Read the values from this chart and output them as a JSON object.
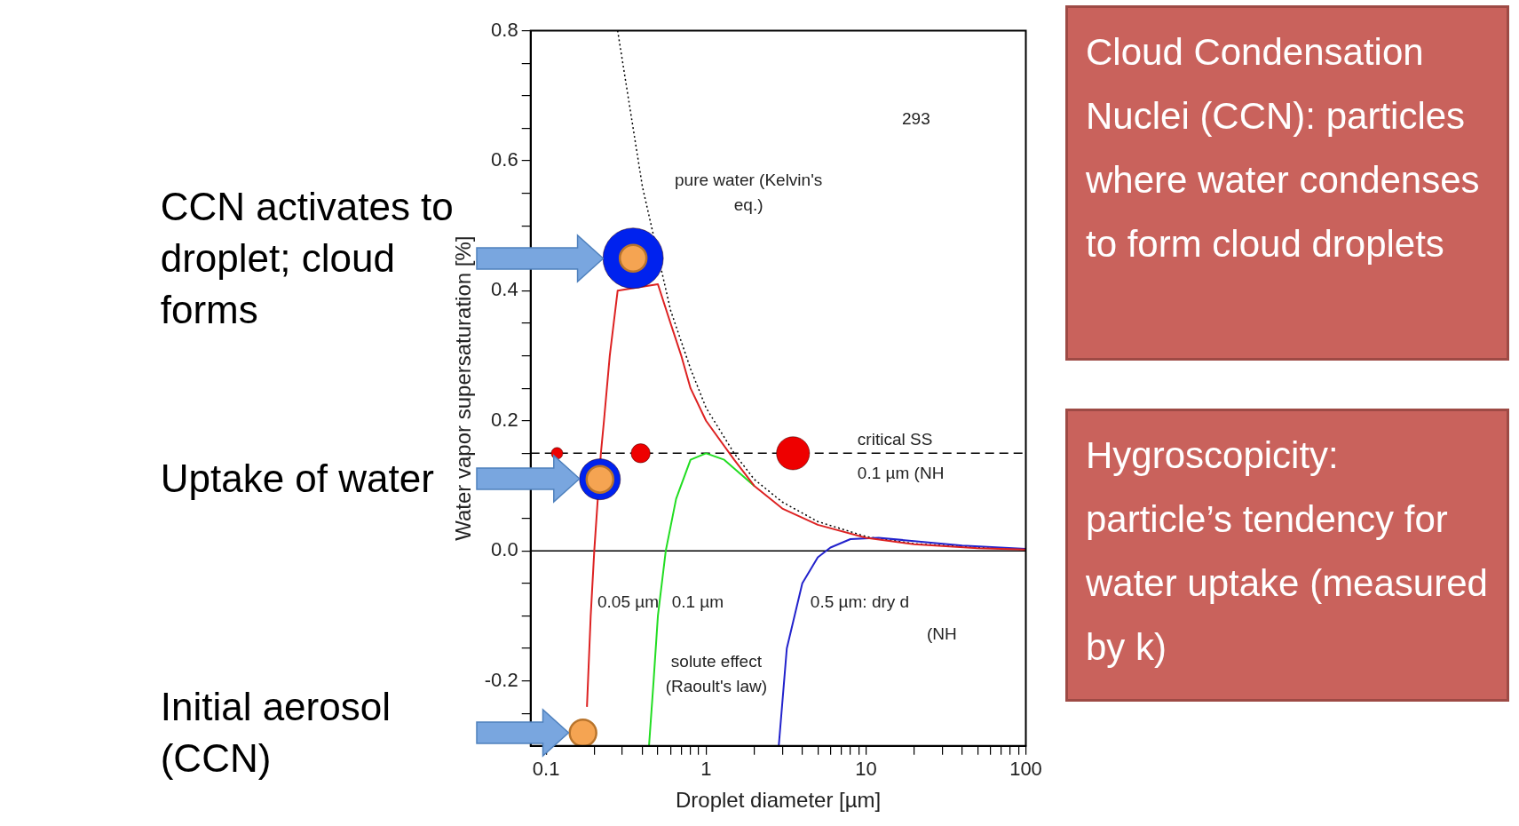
{
  "chart_data": {
    "type": "line",
    "xlabel": "Droplet diameter [µm]",
    "ylabel": "Water vapor supersaturation [%]",
    "log": "x",
    "xlim": [
      0.08,
      100
    ],
    "ylim": [
      -0.3,
      0.8
    ],
    "xticks": [
      0.1,
      {
        "value": 0.2,
        "label": null
      },
      {
        "value": 0.3,
        "label": null
      },
      {
        "value": 0.4,
        "label": null
      },
      {
        "value": 0.5,
        "label": null
      },
      {
        "value": 0.6,
        "label": null
      },
      {
        "value": 0.7,
        "label": null
      },
      {
        "value": 0.8,
        "label": null
      },
      {
        "value": 0.9,
        "label": null
      },
      1,
      {
        "value": 2,
        "label": null
      },
      {
        "value": 3,
        "label": null
      },
      {
        "value": 4,
        "label": null
      },
      {
        "value": 5,
        "label": null
      },
      {
        "value": 6,
        "label": null
      },
      {
        "value": 7,
        "label": null
      },
      {
        "value": 8,
        "label": null
      },
      {
        "value": 9,
        "label": null
      },
      10,
      {
        "value": 20,
        "label": null
      },
      {
        "value": 30,
        "label": null
      },
      {
        "value": 40,
        "label": null
      },
      {
        "value": 50,
        "label": null
      },
      {
        "value": 60,
        "label": null
      },
      {
        "value": 70,
        "label": null
      },
      {
        "value": 80,
        "label": null
      },
      {
        "value": 90,
        "label": null
      },
      100
    ],
    "yticks": [
      {
        "value": -0.25,
        "label": null
      },
      -0.2,
      {
        "value": -0.15,
        "label": null
      },
      {
        "value": -0.1,
        "label": null
      },
      {
        "value": -0.05,
        "label": null
      },
      {
        "value": 0,
        "label": "0.0"
      },
      {
        "value": 0.05,
        "label": null
      },
      {
        "value": 0.1,
        "label": null
      },
      {
        "value": 0.15,
        "label": null
      },
      0.2,
      {
        "value": 0.25,
        "label": null
      },
      {
        "value": 0.3,
        "label": null
      },
      {
        "value": 0.35,
        "label": null
      },
      0.4,
      {
        "value": 0.45,
        "label": null
      },
      {
        "value": 0.5,
        "label": null
      },
      {
        "value": 0.55,
        "label": null
      },
      0.6,
      {
        "value": 0.65,
        "label": null
      },
      {
        "value": 0.7,
        "label": null
      },
      {
        "value": 0.75,
        "label": null
      },
      0.8
    ],
    "grid": false,
    "legend": false,
    "series": [
      {
        "color": "#000000",
        "line_style": "dotted",
        "marker": "none",
        "x": [
          0.28,
          0.35,
          0.4,
          0.6,
          0.8,
          1,
          1.5,
          2,
          3,
          5,
          10,
          20,
          50,
          100
        ],
        "values": [
          0.8,
          0.65,
          0.56,
          0.37,
          0.28,
          0.22,
          0.15,
          0.11,
          0.075,
          0.045,
          0.022,
          0.011,
          0.005,
          0.002
        ]
      },
      {
        "color": "#22dd22",
        "line_style": "solid",
        "marker": "none",
        "x": [
          0.44,
          0.47,
          0.5,
          0.56,
          0.65,
          0.8,
          1,
          1.3,
          2
        ],
        "values": [
          -0.3,
          -0.2,
          -0.1,
          0,
          0.08,
          0.14,
          0.15,
          0.14,
          0.1
        ]
      },
      {
        "color": "#2222cc",
        "line_style": "solid",
        "marker": "none",
        "x": [
          2.85,
          3.2,
          4,
          5,
          6,
          8,
          12,
          20,
          40,
          100
        ],
        "values": [
          -0.3,
          -0.15,
          -0.05,
          -0.01,
          0.005,
          0.018,
          0.02,
          0.015,
          0.008,
          0.003
        ]
      },
      {
        "color": "#dd2222",
        "line_style": "solid",
        "marker": "none",
        "x": [
          0.18,
          0.19,
          0.2,
          0.22,
          0.23,
          0.25,
          0.28,
          0.5,
          0.6,
          0.7,
          0.8,
          1,
          1.5,
          2,
          3,
          5,
          10,
          20,
          50,
          100
        ],
        "values": [
          -0.24,
          -0.1,
          0,
          0.15,
          0.2,
          0.3,
          0.4,
          0.41,
          0.35,
          0.3,
          0.25,
          0.2,
          0.14,
          0.1,
          0.065,
          0.04,
          0.02,
          0.01,
          0.004,
          0.002
        ]
      },
      {
        "type": "bubble",
        "color": "#ee0000",
        "x": [
          0.117,
          0.39,
          3.5
        ],
        "values": [
          0.15,
          0.15,
          0.15
        ],
        "sizes": [
          0.037,
          0.1,
          0.3
        ]
      },
      {
        "type": "bubble",
        "color": "#0022ee",
        "x": [
          0.217,
          0.35
        ],
        "values": [
          0.11,
          0.45
        ],
        "sizes": [
          0.46,
          1
        ]
      },
      {
        "type": "scatter",
        "color": "#f5a452",
        "marker": "circle",
        "x": [
          0.17,
          0.217,
          0.35
        ],
        "values": [
          -0.28,
          0.11,
          0.45
        ]
      }
    ],
    "ref_lines": [
      {
        "axis": "y",
        "value": 0,
        "color": "#000000",
        "line_style": "solid"
      },
      {
        "axis": "y",
        "value": 0.15,
        "color": "#000000",
        "line_style": "dashed"
      }
    ],
    "annotations": [
      "pure water (Kelvin's eq.)",
      "solute effect (Raoult's law)",
      "0.05 µm",
      "0.1 µm",
      "0.5 µm: dry d",
      "(NH",
      "critical SS",
      "0.1 µm (NH",
      "293",
      "CCN activates to droplet; cloud forms",
      "Uptake of water",
      "Initial aerosol (CCN)",
      "Cloud Condensation Nuclei (CCN): particles where water condenses to form cloud droplets",
      "Hygroscopicity: particle’s tendency for water uptake (measured by k)"
    ]
  }
}
